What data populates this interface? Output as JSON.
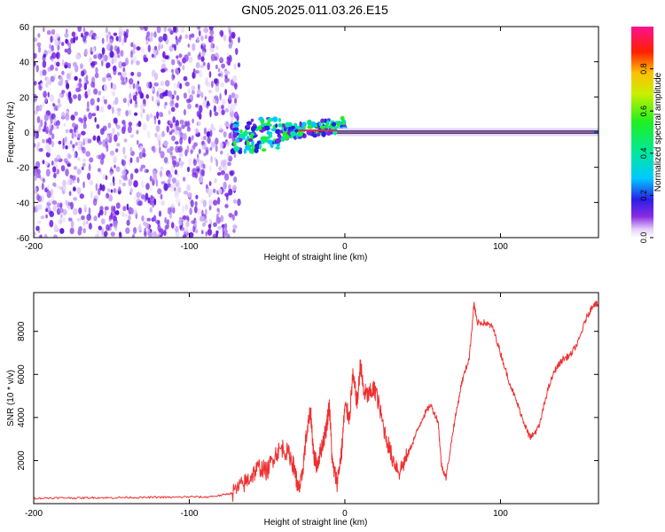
{
  "title": "GN05.2025.011.03.26.E15",
  "colors": {
    "snr_line": "#f03030",
    "spectral_main": "#7a22e6",
    "spectral_faint": "#c9a8f5",
    "axis": "#000000"
  },
  "chart_data": [
    {
      "type": "heatmap",
      "xlabel": "Height of straight line (km)",
      "ylabel": "Frequency (Hz)",
      "xlim": [
        -200,
        163
      ],
      "ylim": [
        -60,
        60
      ],
      "xticks": [
        -200,
        -100,
        0,
        100
      ],
      "yticks": [
        60,
        40,
        20,
        0,
        -20,
        -40,
        -60
      ],
      "ytick_labels": [
        "60",
        "40",
        "20",
        "0",
        "-20",
        "-40",
        "-60"
      ],
      "xtick_labels": [
        "-200",
        "-100",
        "0",
        "100"
      ],
      "noise_region_km": [
        -200,
        -72
      ],
      "signal_band_hz": [
        -3,
        3
      ],
      "peak_line_hz": 0,
      "colorbar": {
        "label": "Normalized spectral amplitude",
        "range": [
          0,
          1
        ],
        "ticks": [
          0.0,
          0.2,
          0.4,
          0.6,
          0.8
        ],
        "tick_labels": [
          "0.0",
          "0.2",
          "0.4",
          "0.6",
          "0.8"
        ]
      }
    },
    {
      "type": "line",
      "xlabel": "Height of straight line (km)",
      "ylabel": "SNR (10 * v/v)",
      "xlim": [
        -200,
        163
      ],
      "ylim": [
        0,
        9800
      ],
      "xticks": [
        -200,
        -100,
        0,
        100
      ],
      "xtick_labels": [
        "-200",
        "-100",
        "0",
        "100"
      ],
      "yticks": [
        2000,
        4000,
        6000,
        8000
      ],
      "ytick_labels": [
        "2000",
        "4000",
        "6000",
        "8000"
      ],
      "series": [
        {
          "x": [
            -200,
            -190,
            -180,
            -170,
            -160,
            -150,
            -140,
            -130,
            -120,
            -110,
            -100,
            -90,
            -80,
            -72,
            -65,
            -60,
            -55,
            -50,
            -45,
            -40,
            -35,
            -32,
            -30,
            -28,
            -25,
            -22,
            -20,
            -18,
            -15,
            -12,
            -10,
            -8,
            -5,
            -2,
            0,
            3,
            5,
            8,
            10,
            12,
            15,
            18,
            20,
            25,
            30,
            35,
            40,
            45,
            50,
            55,
            60,
            62,
            65,
            70,
            75,
            80,
            83,
            85,
            90,
            95,
            100,
            105,
            110,
            115,
            118,
            120,
            125,
            130,
            135,
            140,
            145,
            150,
            155,
            160,
            163
          ],
          "y": [
            250,
            260,
            270,
            260,
            280,
            270,
            290,
            280,
            300,
            290,
            320,
            300,
            380,
            500,
            900,
            1300,
            1700,
            1500,
            2300,
            2600,
            2200,
            1500,
            600,
            1000,
            3000,
            4300,
            2200,
            1800,
            2600,
            3500,
            4600,
            1800,
            1000,
            2500,
            4500,
            4000,
            5900,
            4700,
            6500,
            5200,
            5000,
            5300,
            5200,
            3500,
            2200,
            1500,
            2200,
            3100,
            4000,
            4600,
            3800,
            1800,
            1200,
            3600,
            5600,
            6800,
            9300,
            8400,
            8400,
            8200,
            7000,
            5800,
            4800,
            3800,
            3200,
            3100,
            3600,
            5200,
            6200,
            6700,
            6900,
            7500,
            8600,
            9300,
            9200
          ]
        }
      ]
    }
  ]
}
